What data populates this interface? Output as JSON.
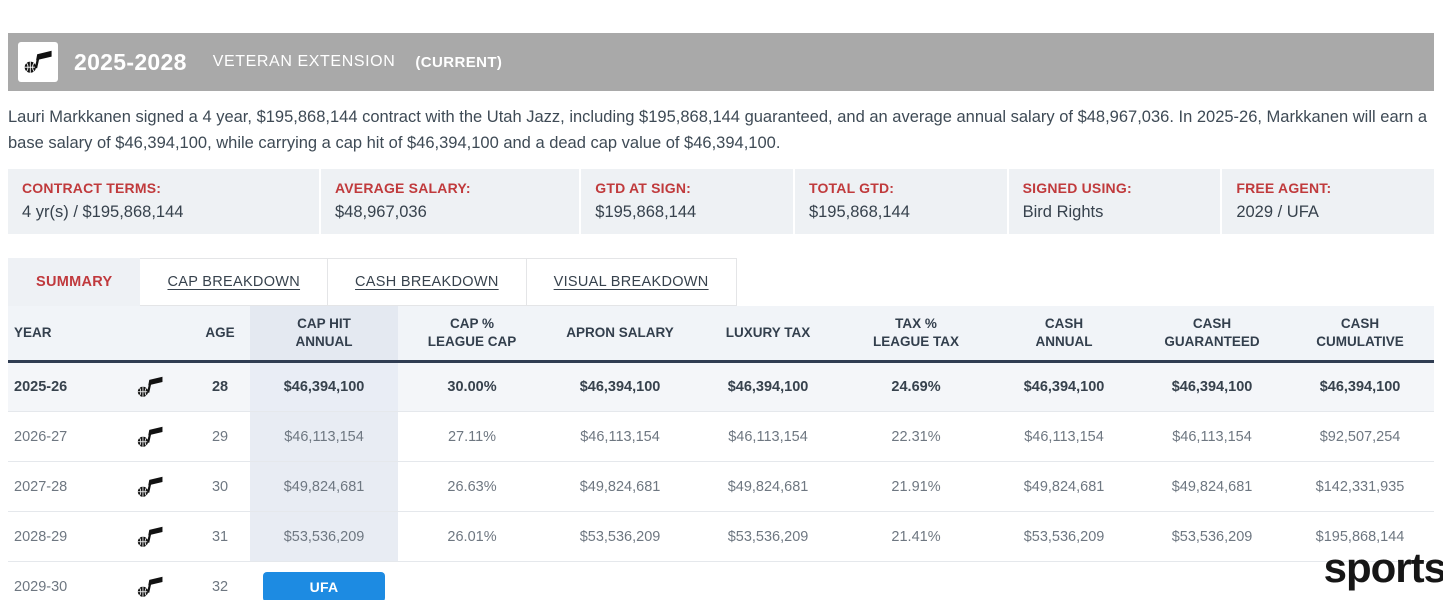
{
  "header": {
    "season_range": "2025-2028",
    "contract_type": "VETERAN EXTENSION",
    "status": "(CURRENT)",
    "team_icon": "utah-jazz-note-icon"
  },
  "summary_text": "Lauri Markkanen signed a 4 year, $195,868,144 contract with the Utah Jazz, including $195,868,144 guaranteed, and an average annual salary of $48,967,036. In 2025-26, Markkanen will earn a base salary of $46,394,100, while carrying a cap hit of $46,394,100 and a dead cap value of $46,394,100.",
  "contract_terms": [
    {
      "label": "CONTRACT TERMS:",
      "value": "4 yr(s) / $195,868,144"
    },
    {
      "label": "AVERAGE SALARY:",
      "value": "$48,967,036"
    },
    {
      "label": "GTD AT SIGN:",
      "value": "$195,868,144"
    },
    {
      "label": "TOTAL GTD:",
      "value": "$195,868,144"
    },
    {
      "label": "SIGNED USING:",
      "value": "Bird Rights"
    },
    {
      "label": "FREE AGENT:",
      "value": "2029 / UFA"
    }
  ],
  "tabs": [
    {
      "label": "SUMMARY",
      "active": true
    },
    {
      "label": "CAP BREAKDOWN",
      "active": false
    },
    {
      "label": "CASH BREAKDOWN",
      "active": false
    },
    {
      "label": "VISUAL BREAKDOWN",
      "active": false
    }
  ],
  "table": {
    "columns": [
      "YEAR",
      "AGE",
      "CAP HIT|ANNUAL",
      "CAP %|LEAGUE CAP",
      "APRON SALARY",
      "LUXURY TAX",
      "TAX %|LEAGUE TAX",
      "CASH|ANNUAL",
      "CASH|GUARANTEED",
      "CASH|CUMULATIVE"
    ],
    "rows": [
      {
        "year": "2025-26",
        "age": "28",
        "cap_hit": "$46,394,100",
        "cap_pct": "30.00%",
        "apron_salary": "$46,394,100",
        "luxury_tax": "$46,394,100",
        "tax_pct": "24.69%",
        "cash_annual": "$46,394,100",
        "cash_guaranteed": "$46,394,100",
        "cash_cumulative": "$46,394,100",
        "current": true
      },
      {
        "year": "2026-27",
        "age": "29",
        "cap_hit": "$46,113,154",
        "cap_pct": "27.11%",
        "apron_salary": "$46,113,154",
        "luxury_tax": "$46,113,154",
        "tax_pct": "22.31%",
        "cash_annual": "$46,113,154",
        "cash_guaranteed": "$46,113,154",
        "cash_cumulative": "$92,507,254",
        "current": false
      },
      {
        "year": "2027-28",
        "age": "30",
        "cap_hit": "$49,824,681",
        "cap_pct": "26.63%",
        "apron_salary": "$49,824,681",
        "luxury_tax": "$49,824,681",
        "tax_pct": "21.91%",
        "cash_annual": "$49,824,681",
        "cash_guaranteed": "$49,824,681",
        "cash_cumulative": "$142,331,935",
        "current": false
      },
      {
        "year": "2028-29",
        "age": "31",
        "cap_hit": "$53,536,209",
        "cap_pct": "26.01%",
        "apron_salary": "$53,536,209",
        "luxury_tax": "$53,536,209",
        "tax_pct": "21.41%",
        "cash_annual": "$53,536,209",
        "cash_guaranteed": "$53,536,209",
        "cash_cumulative": "$195,868,144",
        "current": false
      },
      {
        "year": "2029-30",
        "age": "32",
        "cap_hit_badge": "UFA",
        "current": false
      }
    ]
  },
  "watermark": "sports",
  "colors": {
    "header_bar_gray": "#a9a9a9",
    "accent_red": "#c03a3c",
    "panel_bg": "#eef1f4",
    "cap_column_bg": "#e8ecf3",
    "header_underline": "#303d52",
    "ufa_blue": "#1d8be2"
  }
}
